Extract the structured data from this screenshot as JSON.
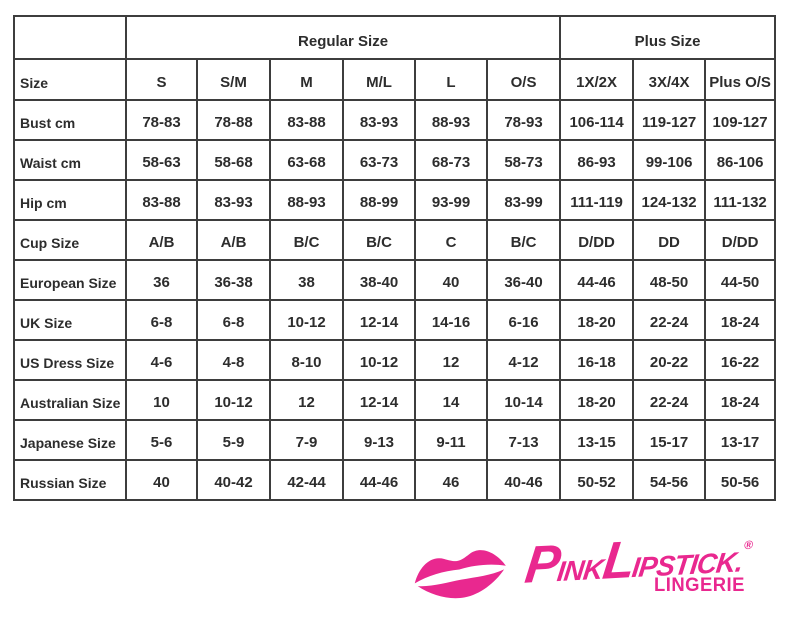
{
  "size_chart": {
    "group_headers": [
      {
        "label": "Regular Size",
        "span": 6
      },
      {
        "label": "Plus Size",
        "span": 3
      }
    ],
    "column_headers": [
      "Size",
      "S",
      "S/M",
      "M",
      "M/L",
      "L",
      "O/S",
      "1X/2X",
      "3X/4X",
      "Plus O/S"
    ],
    "rows": [
      {
        "label": "Bust cm",
        "values": [
          "78-83",
          "78-88",
          "83-88",
          "83-93",
          "88-93",
          "78-93",
          "106-114",
          "119-127",
          "109-127"
        ]
      },
      {
        "label": "Waist cm",
        "values": [
          "58-63",
          "58-68",
          "63-68",
          "63-73",
          "68-73",
          "58-73",
          "86-93",
          "99-106",
          "86-106"
        ]
      },
      {
        "label": "Hip cm",
        "values": [
          "83-88",
          "83-93",
          "88-93",
          "88-99",
          "93-99",
          "83-99",
          "111-119",
          "124-132",
          "111-132"
        ]
      },
      {
        "label": "Cup Size",
        "values": [
          "A/B",
          "A/B",
          "B/C",
          "B/C",
          "C",
          "B/C",
          "D/DD",
          "DD",
          "D/DD"
        ]
      },
      {
        "label": "European Size",
        "values": [
          "36",
          "36-38",
          "38",
          "38-40",
          "40",
          "36-40",
          "44-46",
          "48-50",
          "44-50"
        ]
      },
      {
        "label": "UK Size",
        "values": [
          "6-8",
          "6-8",
          "10-12",
          "12-14",
          "14-16",
          "6-16",
          "18-20",
          "22-24",
          "18-24"
        ]
      },
      {
        "label": "US Dress Size",
        "values": [
          "4-6",
          "4-8",
          "8-10",
          "10-12",
          "12",
          "4-12",
          "16-18",
          "20-22",
          "16-22"
        ]
      },
      {
        "label": "Australian Size",
        "values": [
          "10",
          "10-12",
          "12",
          "12-14",
          "14",
          "10-14",
          "18-20",
          "22-24",
          "18-24"
        ]
      },
      {
        "label": "Japanese Size",
        "values": [
          "5-6",
          "5-9",
          "7-9",
          "9-13",
          "9-11",
          "7-13",
          "13-15",
          "15-17",
          "13-17"
        ]
      },
      {
        "label": "Russian Size",
        "values": [
          "40",
          "40-42",
          "42-44",
          "44-46",
          "46",
          "40-46",
          "50-52",
          "54-56",
          "50-56"
        ]
      }
    ]
  },
  "logo": {
    "kiss_icon": "lips-kiss-mark",
    "brand_pink": "#e9288f",
    "brand_part_p": "P",
    "brand_part_ink": "INK",
    "brand_part_l": "L",
    "brand_part_ipstick": "IPSTICK.",
    "registered_mark": "®",
    "subtitle": "LINGERIE"
  }
}
